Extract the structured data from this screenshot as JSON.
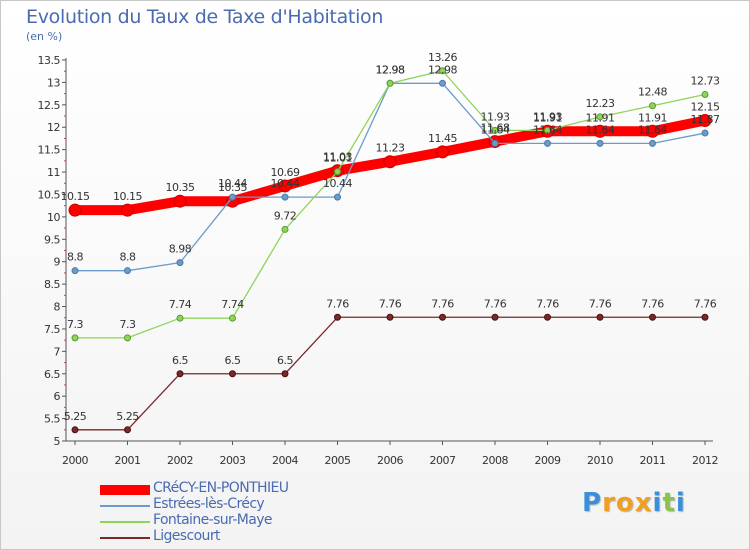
{
  "chart_data": {
    "type": "line",
    "title": "Evolution du Taux de Taxe d'Habitation",
    "ylabel": "(en %)",
    "xlabel": "",
    "categories": [
      "2000",
      "2001",
      "2002",
      "2003",
      "2004",
      "2005",
      "2006",
      "2007",
      "2008",
      "2009",
      "2010",
      "2011",
      "2012"
    ],
    "ylim": [
      5,
      13.5
    ],
    "yticks": [
      "5",
      "5.5",
      "6",
      "6.5",
      "7",
      "7.5",
      "8",
      "8.5",
      "9",
      "9.5",
      "10",
      "10.5",
      "11",
      "11.5",
      "12",
      "12.5",
      "13",
      "13.5"
    ],
    "grid": false,
    "legend_position": "bottom-left",
    "series": [
      {
        "name": "CRéCY-EN-PONTHIEU",
        "color": "#ff0000",
        "values": [
          10.15,
          10.15,
          10.35,
          10.35,
          10.69,
          11.03,
          11.23,
          11.45,
          11.68,
          11.91,
          11.91,
          11.91,
          12.15
        ],
        "labels": [
          "10.15",
          "10.15",
          "10.35",
          "10.35",
          "10.69",
          "11.03",
          "11.23",
          "11.45",
          "11.68",
          "11.91",
          "11.91",
          "11.91",
          "12.15"
        ]
      },
      {
        "name": "Estrées-lès-Crécy",
        "color": "#6b9bc8",
        "values": [
          8.8,
          8.8,
          8.98,
          10.44,
          10.44,
          10.44,
          12.98,
          12.98,
          11.64,
          11.64,
          11.64,
          11.64,
          11.87
        ],
        "labels": [
          "8.8",
          "8.8",
          "8.98",
          "10.44",
          "10.44",
          "10.44",
          "12.98",
          "12.98",
          "11.64",
          "11.64",
          "11.64",
          "11.64",
          "11.87"
        ]
      },
      {
        "name": "Fontaine-sur-Maye",
        "color": "#8fd45a",
        "values": [
          7.3,
          7.3,
          7.74,
          7.74,
          9.72,
          11.01,
          12.98,
          13.26,
          11.93,
          11.93,
          12.23,
          12.48,
          12.73
        ],
        "labels": [
          "7.3",
          "7.3",
          "7.74",
          "7.74",
          "9.72",
          "11.01",
          "12.98",
          "13.26",
          "11.93",
          "11.93",
          "12.23",
          "12.48",
          "12.73"
        ]
      },
      {
        "name": "Ligescourt",
        "color": "#7a2828",
        "values": [
          5.25,
          5.25,
          6.5,
          6.5,
          6.5,
          7.76,
          7.76,
          7.76,
          7.76,
          7.76,
          7.76,
          7.76,
          7.76
        ],
        "labels": [
          "5.25",
          "5.25",
          "6.5",
          "6.5",
          "6.5",
          "7.76",
          "7.76",
          "7.76",
          "7.76",
          "7.76",
          "7.76",
          "7.76",
          "7.76"
        ]
      }
    ]
  },
  "logo": {
    "letters": [
      "P",
      "r",
      "o",
      "x",
      "i",
      "t",
      "i"
    ],
    "colors": [
      "#3a8fd8",
      "#f0a020",
      "#f0a020",
      "#f0a020",
      "#3a8fd8",
      "#8bc34a",
      "#3a8fd8"
    ]
  }
}
